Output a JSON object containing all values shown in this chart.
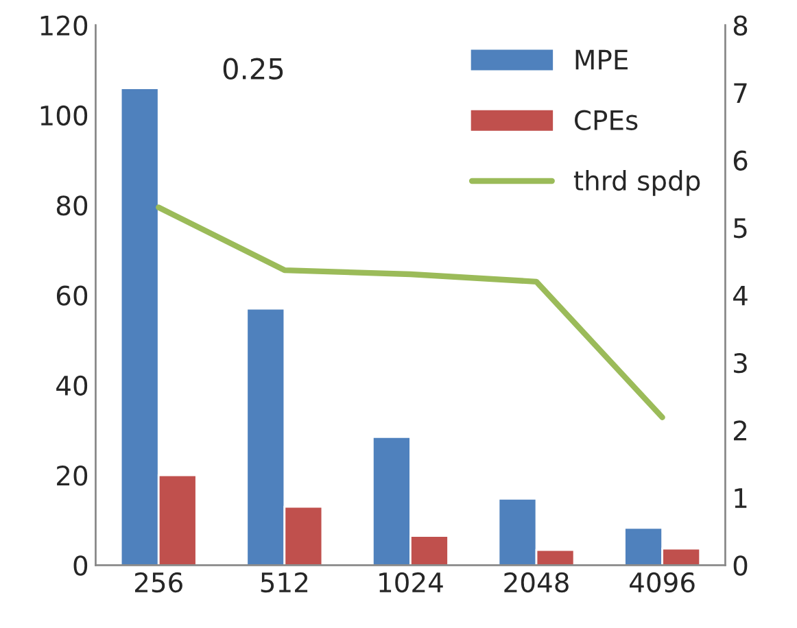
{
  "chart_data": {
    "type": "bar",
    "categories": [
      "256",
      "512",
      "1024",
      "2048",
      "4096"
    ],
    "series": [
      {
        "name": "MPE",
        "color": "#4f81bd",
        "values": [
          106,
          57,
          28.5,
          14.8,
          8.3
        ]
      },
      {
        "name": "CPEs",
        "color": "#c0504d",
        "values": [
          20,
          13,
          6.5,
          3.4,
          3.7
        ]
      },
      {
        "name": "thrd spdp",
        "type": "line",
        "axis": "y2",
        "color": "#9bbb59",
        "values": [
          5.3,
          4.37,
          4.31,
          4.2,
          2.19
        ]
      }
    ],
    "ylim": [
      0,
      120
    ],
    "yticks": [
      0,
      20,
      40,
      60,
      80,
      100,
      120
    ],
    "y2lim": [
      0,
      8
    ],
    "y2ticks": [
      0,
      1,
      2,
      3,
      4,
      5,
      6,
      7,
      8
    ],
    "annotations": [
      "0.25"
    ],
    "grid": false,
    "legend": "top right",
    "marker": "none",
    "line_style": "solid"
  }
}
